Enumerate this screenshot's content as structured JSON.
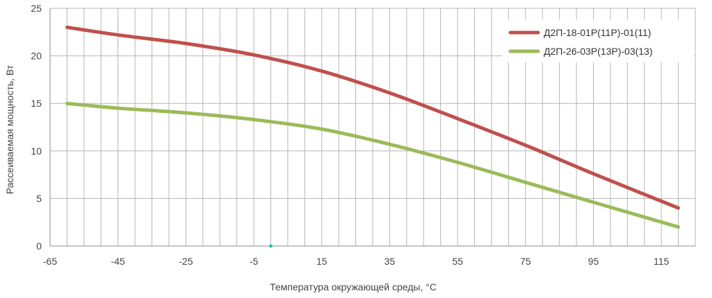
{
  "chart_data": {
    "type": "line",
    "title": "",
    "xlabel": "Температура окружающей среды, °C",
    "ylabel": "Рассеиваемая мощность, Вт",
    "xlim": [
      -65,
      125
    ],
    "ylim": [
      0,
      25
    ],
    "x_ticks": [
      -65,
      -45,
      -25,
      -5,
      15,
      35,
      55,
      75,
      95,
      115
    ],
    "y_ticks": [
      0,
      5,
      10,
      15,
      20,
      25
    ],
    "x_minor_step": 5,
    "grid": true,
    "legend_position": "top-right",
    "series": [
      {
        "name": "Д2П-18-01Р(11Р)-01(11)",
        "color": "#c0504d",
        "x": [
          -60,
          -45,
          -25,
          -5,
          15,
          35,
          55,
          75,
          95,
          120
        ],
        "y": [
          23.0,
          22.2,
          21.3,
          20.1,
          18.4,
          16.1,
          13.4,
          10.6,
          7.6,
          4.0
        ]
      },
      {
        "name": "Д2П-26-03Р(13Р)-03(13)",
        "color": "#9bbb59",
        "x": [
          -60,
          -45,
          -25,
          -5,
          15,
          35,
          55,
          75,
          95,
          120
        ],
        "y": [
          15.0,
          14.5,
          14.0,
          13.3,
          12.3,
          10.7,
          8.8,
          6.7,
          4.6,
          2.0
        ]
      }
    ]
  }
}
